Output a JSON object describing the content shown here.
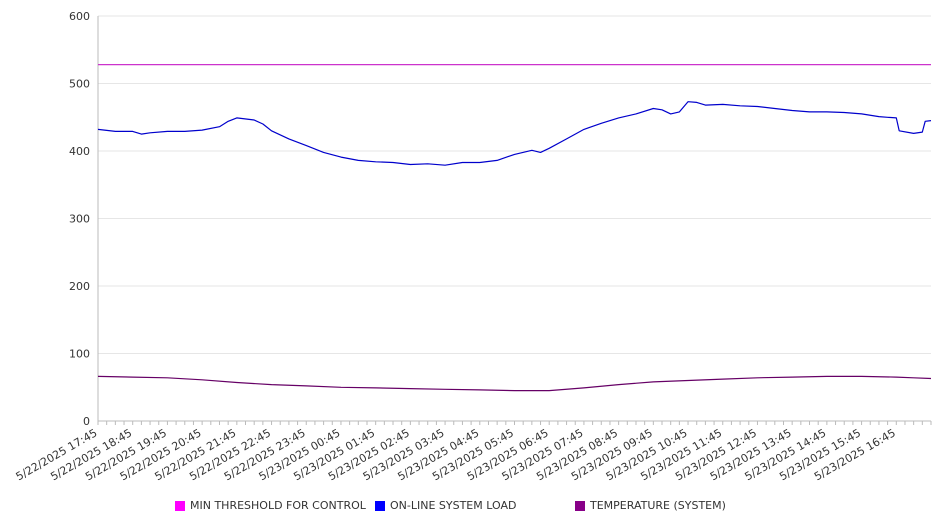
{
  "chart_data": {
    "type": "line",
    "title": "",
    "xlabel": "",
    "ylabel": "",
    "ylim": [
      0,
      600
    ],
    "yticks": [
      0,
      100,
      200,
      300,
      400,
      500,
      600
    ],
    "grid": true,
    "legend_position": "bottom",
    "x_tick_labels": [
      "5/22/2025 17:45",
      "5/22/2025 18:45",
      "5/22/2025 19:45",
      "5/22/2025 20:45",
      "5/22/2025 21:45",
      "5/22/2025 22:45",
      "5/22/2025 23:45",
      "5/23/2025 00:45",
      "5/23/2025 01:45",
      "5/23/2025 02:45",
      "5/23/2025 03:45",
      "5/23/2025 04:45",
      "5/23/2025 05:45",
      "5/23/2025 06:45",
      "5/23/2025 07:45",
      "5/23/2025 08:45",
      "5/23/2025 09:45",
      "5/23/2025 10:45",
      "5/23/2025 11:45",
      "5/23/2025 12:45",
      "5/23/2025 13:45",
      "5/23/2025 14:45",
      "5/23/2025 15:45",
      "5/23/2025 16:45"
    ],
    "x_end": "5/23/2025 17:45",
    "series": [
      {
        "name": "MIN THRESHOLD FOR CONTROL",
        "color": "#cc33cc",
        "legend_color": "#ff00ff",
        "points": [
          [
            "5/22/2025 17:45",
            528
          ],
          [
            "5/23/2025 17:45",
            528
          ]
        ]
      },
      {
        "name": "ON-LINE SYSTEM LOAD",
        "color": "#0000cc",
        "legend_color": "#0000ff",
        "points": [
          [
            "5/22/2025 17:45",
            432
          ],
          [
            "5/22/2025 18:15",
            429
          ],
          [
            "5/22/2025 18:45",
            429
          ],
          [
            "5/22/2025 19:00",
            425
          ],
          [
            "5/22/2025 19:15",
            427
          ],
          [
            "5/22/2025 19:45",
            429
          ],
          [
            "5/22/2025 20:15",
            429
          ],
          [
            "5/22/2025 20:45",
            431
          ],
          [
            "5/22/2025 21:15",
            436
          ],
          [
            "5/22/2025 21:30",
            444
          ],
          [
            "5/22/2025 21:45",
            449
          ],
          [
            "5/22/2025 22:15",
            446
          ],
          [
            "5/22/2025 22:30",
            440
          ],
          [
            "5/22/2025 22:45",
            430
          ],
          [
            "5/22/2025 23:15",
            418
          ],
          [
            "5/22/2025 23:45",
            408
          ],
          [
            "5/23/2025 00:15",
            398
          ],
          [
            "5/23/2025 00:45",
            391
          ],
          [
            "5/23/2025 01:15",
            386
          ],
          [
            "5/23/2025 01:45",
            384
          ],
          [
            "5/23/2025 02:15",
            383
          ],
          [
            "5/23/2025 02:45",
            380
          ],
          [
            "5/23/2025 03:15",
            381
          ],
          [
            "5/23/2025 03:45",
            379
          ],
          [
            "5/23/2025 04:15",
            383
          ],
          [
            "5/23/2025 04:45",
            383
          ],
          [
            "5/23/2025 05:15",
            386
          ],
          [
            "5/23/2025 05:45",
            395
          ],
          [
            "5/23/2025 06:15",
            401
          ],
          [
            "5/23/2025 06:30",
            398
          ],
          [
            "5/23/2025 06:45",
            404
          ],
          [
            "5/23/2025 07:15",
            418
          ],
          [
            "5/23/2025 07:45",
            432
          ],
          [
            "5/23/2025 08:15",
            441
          ],
          [
            "5/23/2025 08:45",
            449
          ],
          [
            "5/23/2025 09:15",
            455
          ],
          [
            "5/23/2025 09:45",
            463
          ],
          [
            "5/23/2025 10:00",
            461
          ],
          [
            "5/23/2025 10:15",
            455
          ],
          [
            "5/23/2025 10:30",
            458
          ],
          [
            "5/23/2025 10:45",
            473
          ],
          [
            "5/23/2025 11:00",
            472
          ],
          [
            "5/23/2025 11:15",
            468
          ],
          [
            "5/23/2025 11:45",
            469
          ],
          [
            "5/23/2025 12:15",
            467
          ],
          [
            "5/23/2025 12:45",
            466
          ],
          [
            "5/23/2025 13:15",
            463
          ],
          [
            "5/23/2025 13:45",
            460
          ],
          [
            "5/23/2025 14:15",
            458
          ],
          [
            "5/23/2025 14:45",
            458
          ],
          [
            "5/23/2025 15:15",
            457
          ],
          [
            "5/23/2025 15:45",
            455
          ],
          [
            "5/23/2025 16:15",
            451
          ],
          [
            "5/23/2025 16:30",
            450
          ],
          [
            "5/23/2025 16:45",
            449
          ],
          [
            "5/23/2025 16:50",
            430
          ],
          [
            "5/23/2025 17:15",
            426
          ],
          [
            "5/23/2025 17:30",
            428
          ],
          [
            "5/23/2025 17:35",
            444
          ],
          [
            "5/23/2025 17:45",
            445
          ]
        ]
      },
      {
        "name": "TEMPERATURE (SYSTEM)",
        "color": "#660066",
        "legend_color": "#880088",
        "points": [
          [
            "5/22/2025 17:45",
            66
          ],
          [
            "5/22/2025 18:45",
            65
          ],
          [
            "5/22/2025 19:45",
            64
          ],
          [
            "5/22/2025 20:45",
            61
          ],
          [
            "5/22/2025 21:45",
            57
          ],
          [
            "5/22/2025 22:45",
            54
          ],
          [
            "5/22/2025 23:45",
            52
          ],
          [
            "5/23/2025 00:45",
            50
          ],
          [
            "5/23/2025 01:45",
            49
          ],
          [
            "5/23/2025 02:45",
            48
          ],
          [
            "5/23/2025 03:45",
            47
          ],
          [
            "5/23/2025 04:45",
            46
          ],
          [
            "5/23/2025 05:45",
            45
          ],
          [
            "5/23/2025 06:45",
            45
          ],
          [
            "5/23/2025 07:45",
            49
          ],
          [
            "5/23/2025 08:45",
            54
          ],
          [
            "5/23/2025 09:45",
            58
          ],
          [
            "5/23/2025 10:45",
            60
          ],
          [
            "5/23/2025 11:45",
            62
          ],
          [
            "5/23/2025 12:45",
            64
          ],
          [
            "5/23/2025 13:45",
            65
          ],
          [
            "5/23/2025 14:45",
            66
          ],
          [
            "5/23/2025 15:45",
            66
          ],
          [
            "5/23/2025 16:45",
            65
          ],
          [
            "5/23/2025 17:15",
            64
          ],
          [
            "5/23/2025 17:45",
            63
          ]
        ]
      }
    ]
  }
}
